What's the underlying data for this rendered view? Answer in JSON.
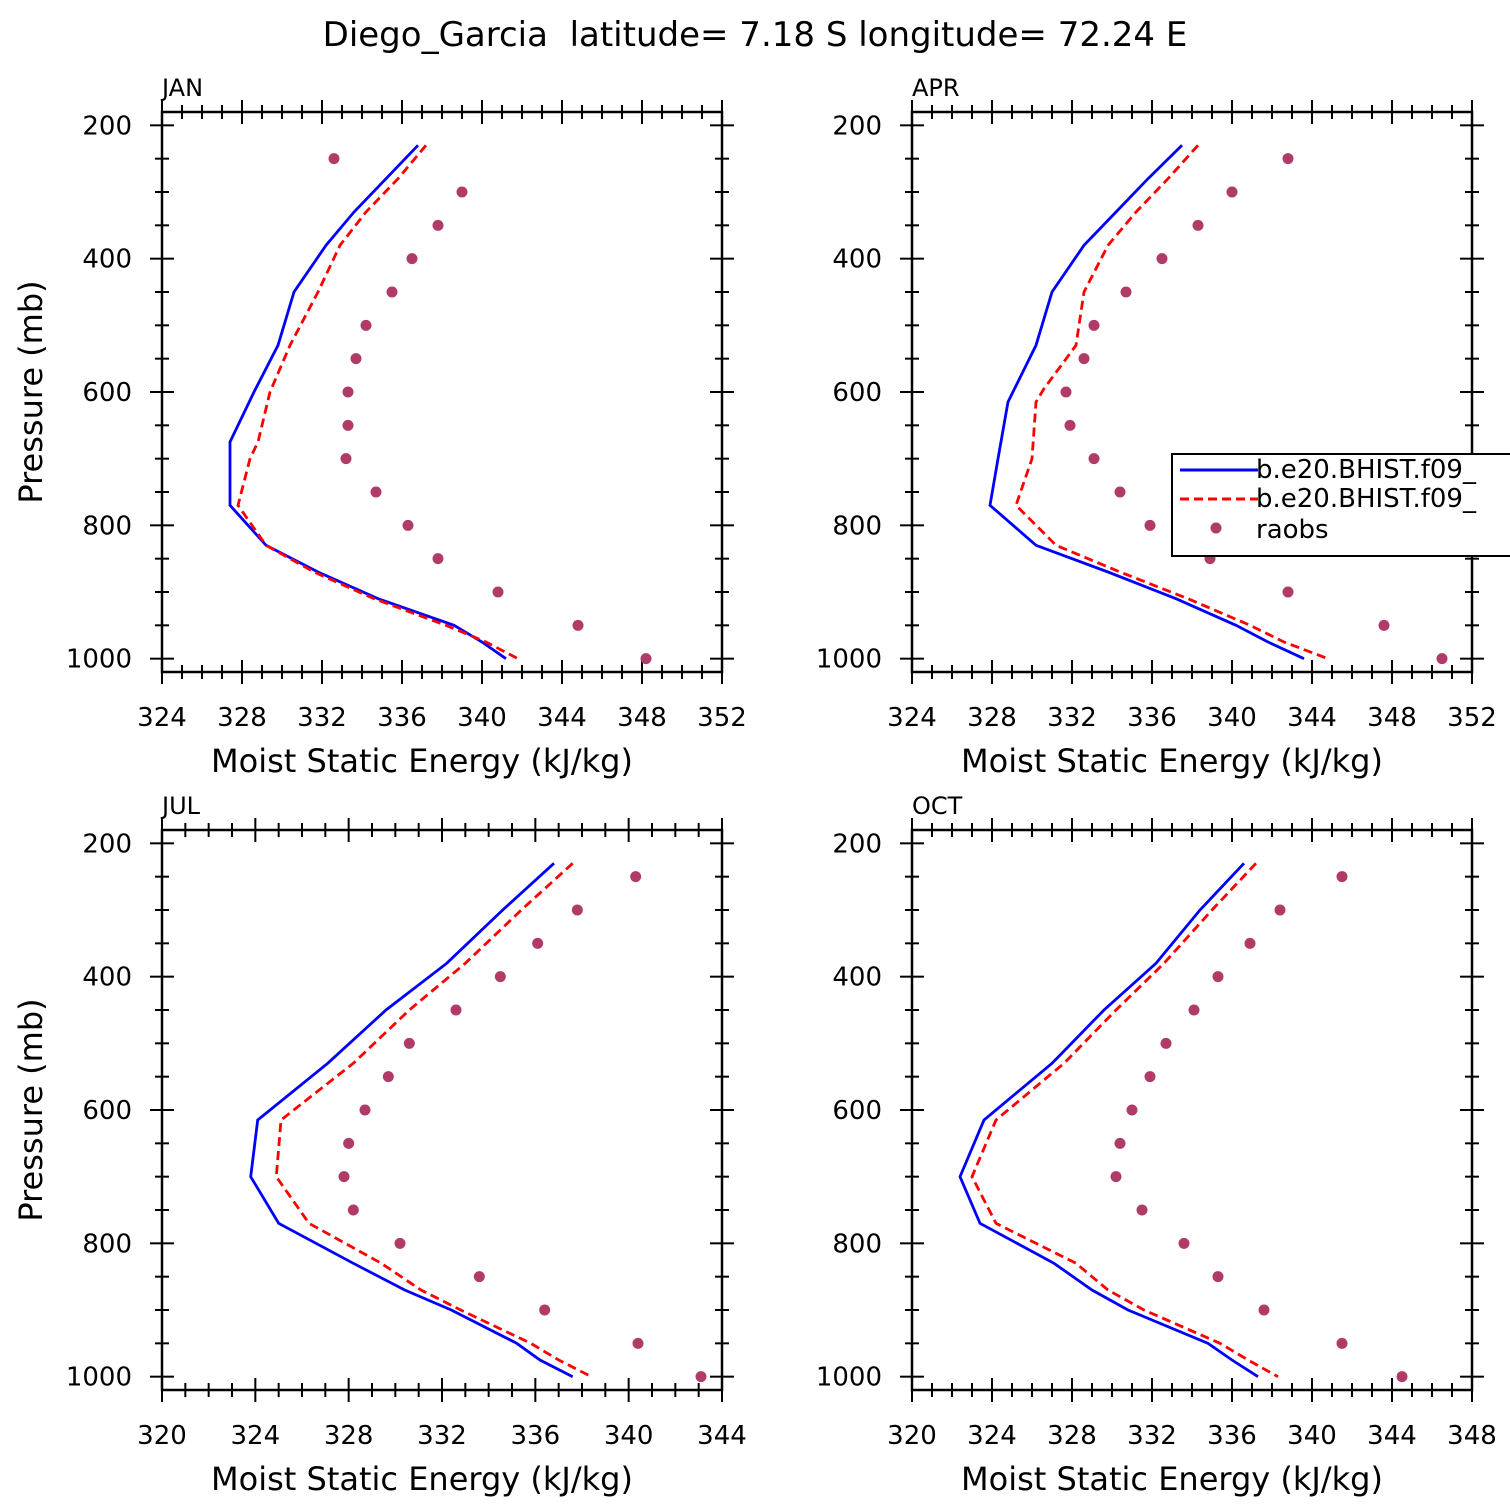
{
  "figure_title": "Diego_Garcia  latitude= 7.18 S longitude= 72.24 E",
  "colors": {
    "model1": "#0000ff",
    "model2": "#ff0000",
    "raobs": "#b03a68",
    "axis": "#000000"
  },
  "legend": {
    "entries": [
      "b.e20.BHIST.f09_",
      "b.e20.BHIST.f09_",
      "raobs"
    ]
  },
  "chart_data": [
    {
      "type": "line",
      "panel": "JAN",
      "xlabel": "Moist Static Energy (kJ/kg)",
      "ylabel": "Pressure (mb)",
      "xlim": [
        324,
        352
      ],
      "ylim": [
        200,
        1000
      ],
      "xticks": [
        324,
        328,
        332,
        336,
        340,
        344,
        348,
        352
      ],
      "yticks": [
        200,
        400,
        600,
        800,
        1000
      ],
      "series": [
        {
          "style": "solid",
          "color": "#0000ff",
          "points": [
            [
              336.8,
              230
            ],
            [
              335.2,
              280
            ],
            [
              333.6,
              330
            ],
            [
              332.2,
              380
            ],
            [
              330.6,
              450
            ],
            [
              329.8,
              530
            ],
            [
              328.6,
              600
            ],
            [
              327.4,
              675
            ],
            [
              327.4,
              700
            ],
            [
              327.4,
              770
            ],
            [
              329.2,
              830
            ],
            [
              331.8,
              870
            ],
            [
              334.8,
              910
            ],
            [
              338.6,
              950
            ],
            [
              340,
              975
            ],
            [
              341.2,
              1000
            ]
          ]
        },
        {
          "style": "dashed",
          "color": "#ff0000",
          "points": [
            [
              337.2,
              230
            ],
            [
              335.8,
              280
            ],
            [
              334.2,
              330
            ],
            [
              332.9,
              380
            ],
            [
              331.8,
              450
            ],
            [
              330.4,
              530
            ],
            [
              329.4,
              600
            ],
            [
              328.8,
              675
            ],
            [
              328.4,
              700
            ],
            [
              327.8,
              770
            ],
            [
              329.2,
              830
            ],
            [
              331.6,
              870
            ],
            [
              334.6,
              910
            ],
            [
              338.2,
              950
            ],
            [
              340.2,
              975
            ],
            [
              341.8,
              1000
            ]
          ]
        }
      ],
      "raobs": [
        [
          332.6,
          250
        ],
        [
          339,
          300
        ],
        [
          337.8,
          350
        ],
        [
          336.5,
          400
        ],
        [
          335.5,
          450
        ],
        [
          334.2,
          500
        ],
        [
          333.7,
          550
        ],
        [
          333.3,
          600
        ],
        [
          333.3,
          650
        ],
        [
          333.2,
          700
        ],
        [
          334.7,
          750
        ],
        [
          336.3,
          800
        ],
        [
          337.8,
          850
        ],
        [
          340.8,
          900
        ],
        [
          344.8,
          950
        ],
        [
          348.2,
          1000
        ]
      ]
    },
    {
      "type": "line",
      "panel": "APR",
      "xlabel": "Moist Static Energy (kJ/kg)",
      "ylabel": "",
      "xlim": [
        324,
        352
      ],
      "ylim": [
        200,
        1000
      ],
      "xticks": [
        324,
        328,
        332,
        336,
        340,
        344,
        348,
        352
      ],
      "yticks": [
        200,
        400,
        600,
        800,
        1000
      ],
      "series": [
        {
          "style": "solid",
          "color": "#0000ff",
          "points": [
            [
              337.5,
              230
            ],
            [
              335.8,
              280
            ],
            [
              334.2,
              330
            ],
            [
              332.6,
              380
            ],
            [
              331,
              450
            ],
            [
              330.2,
              530
            ],
            [
              328.8,
              615
            ],
            [
              328.3,
              700
            ],
            [
              327.9,
              770
            ],
            [
              330.2,
              830
            ],
            [
              333.8,
              870
            ],
            [
              337.2,
              910
            ],
            [
              340.2,
              950
            ],
            [
              341.8,
              975
            ],
            [
              343.6,
              1000
            ]
          ]
        },
        {
          "style": "dashed",
          "color": "#ff0000",
          "points": [
            [
              338.3,
              230
            ],
            [
              336.8,
              280
            ],
            [
              335.2,
              330
            ],
            [
              333.8,
              380
            ],
            [
              332.6,
              450
            ],
            [
              332.2,
              530
            ],
            [
              330.6,
              595
            ],
            [
              330.2,
              615
            ],
            [
              330,
              700
            ],
            [
              329.2,
              770
            ],
            [
              331.2,
              830
            ],
            [
              334.4,
              870
            ],
            [
              337.8,
              910
            ],
            [
              340.9,
              950
            ],
            [
              342.6,
              975
            ],
            [
              344.8,
              1000
            ]
          ]
        }
      ],
      "raobs": [
        [
          342.8,
          250
        ],
        [
          340,
          300
        ],
        [
          338.3,
          350
        ],
        [
          336.5,
          400
        ],
        [
          334.7,
          450
        ],
        [
          333.1,
          500
        ],
        [
          332.6,
          550
        ],
        [
          331.7,
          600
        ],
        [
          331.9,
          650
        ],
        [
          333.1,
          700
        ],
        [
          334.4,
          750
        ],
        [
          335.9,
          800
        ],
        [
          338.9,
          850
        ],
        [
          342.8,
          900
        ],
        [
          347.6,
          950
        ],
        [
          350.5,
          1000
        ]
      ]
    },
    {
      "type": "line",
      "panel": "JUL",
      "xlabel": "Moist Static Energy (kJ/kg)",
      "ylabel": "Pressure (mb)",
      "xlim": [
        320,
        344
      ],
      "ylim": [
        200,
        1000
      ],
      "xticks": [
        320,
        324,
        328,
        332,
        336,
        340,
        344
      ],
      "yticks": [
        200,
        400,
        600,
        800,
        1000
      ],
      "series": [
        {
          "style": "solid",
          "color": "#0000ff",
          "points": [
            [
              336.8,
              230
            ],
            [
              334.6,
              300
            ],
            [
              332.2,
              380
            ],
            [
              329.6,
              450
            ],
            [
              327.1,
              530
            ],
            [
              324.1,
              615
            ],
            [
              323.8,
              700
            ],
            [
              325,
              770
            ],
            [
              328.2,
              830
            ],
            [
              330.4,
              870
            ],
            [
              332.4,
              900
            ],
            [
              335.2,
              950
            ],
            [
              336.2,
              975
            ],
            [
              337.6,
              1000
            ]
          ]
        },
        {
          "style": "dashed",
          "color": "#ff0000",
          "points": [
            [
              337.6,
              230
            ],
            [
              335.4,
              300
            ],
            [
              333,
              380
            ],
            [
              330.6,
              450
            ],
            [
              328.2,
              530
            ],
            [
              325.1,
              615
            ],
            [
              324.9,
              700
            ],
            [
              326.3,
              770
            ],
            [
              329.4,
              830
            ],
            [
              331.1,
              870
            ],
            [
              332.8,
              900
            ],
            [
              335.8,
              950
            ],
            [
              337,
              975
            ],
            [
              338.4,
              1000
            ]
          ]
        }
      ],
      "raobs": [
        [
          340.3,
          250
        ],
        [
          337.8,
          300
        ],
        [
          336.1,
          350
        ],
        [
          334.5,
          400
        ],
        [
          332.6,
          450
        ],
        [
          330.6,
          500
        ],
        [
          329.7,
          550
        ],
        [
          328.7,
          600
        ],
        [
          328,
          650
        ],
        [
          327.8,
          700
        ],
        [
          328.2,
          750
        ],
        [
          330.2,
          800
        ],
        [
          333.6,
          850
        ],
        [
          336.4,
          900
        ],
        [
          340.4,
          950
        ],
        [
          343.1,
          1000
        ]
      ]
    },
    {
      "type": "line",
      "panel": "OCT",
      "xlabel": "Moist Static Energy (kJ/kg)",
      "ylabel": "",
      "xlim": [
        320,
        348
      ],
      "ylim": [
        200,
        1000
      ],
      "xticks": [
        320,
        324,
        328,
        332,
        336,
        340,
        344,
        348
      ],
      "yticks": [
        200,
        400,
        600,
        800,
        1000
      ],
      "series": [
        {
          "style": "solid",
          "color": "#0000ff",
          "points": [
            [
              336.6,
              230
            ],
            [
              334.4,
              300
            ],
            [
              332.2,
              380
            ],
            [
              329.6,
              450
            ],
            [
              327,
              530
            ],
            [
              323.6,
              615
            ],
            [
              322.4,
              700
            ],
            [
              323.4,
              770
            ],
            [
              327.1,
              830
            ],
            [
              329,
              870
            ],
            [
              330.8,
              900
            ],
            [
              334.8,
              950
            ],
            [
              336,
              975
            ],
            [
              337.3,
              1000
            ]
          ]
        },
        {
          "style": "dashed",
          "color": "#ff0000",
          "points": [
            [
              337.2,
              230
            ],
            [
              335,
              300
            ],
            [
              332.6,
              380
            ],
            [
              330.2,
              450
            ],
            [
              327.6,
              530
            ],
            [
              324.2,
              615
            ],
            [
              323,
              700
            ],
            [
              324.2,
              770
            ],
            [
              328.2,
              830
            ],
            [
              329.8,
              870
            ],
            [
              331.6,
              900
            ],
            [
              335.4,
              950
            ],
            [
              336.8,
              975
            ],
            [
              338.3,
              1000
            ]
          ]
        }
      ],
      "raobs": [
        [
          341.5,
          250
        ],
        [
          338.4,
          300
        ],
        [
          336.9,
          350
        ],
        [
          335.3,
          400
        ],
        [
          334.1,
          450
        ],
        [
          332.7,
          500
        ],
        [
          331.9,
          550
        ],
        [
          331,
          600
        ],
        [
          330.4,
          650
        ],
        [
          330.2,
          700
        ],
        [
          331.5,
          750
        ],
        [
          333.6,
          800
        ],
        [
          335.3,
          850
        ],
        [
          337.6,
          900
        ],
        [
          341.5,
          950
        ],
        [
          344.5,
          1000
        ]
      ]
    }
  ]
}
